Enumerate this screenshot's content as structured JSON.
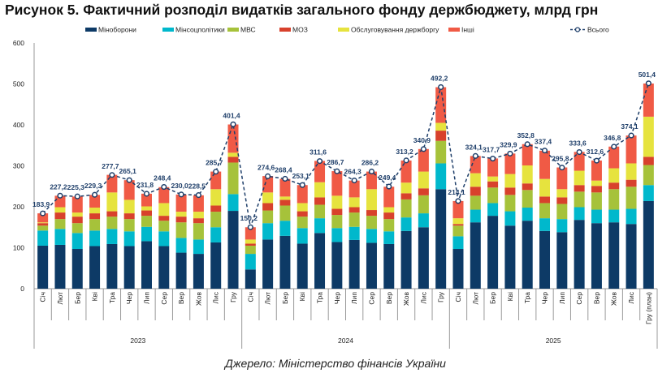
{
  "chart_data": {
    "type": "bar",
    "stacked": true,
    "title": "Рисунок 5. Фактичний розподіл видатків загального фонду держбюджету, млрд грн",
    "source": "Джерело: Міністерство фінансів України",
    "ylim": [
      0,
      600
    ],
    "yticks": [
      0,
      100,
      200,
      300,
      400,
      500,
      600
    ],
    "legend_position": "top",
    "groups": [
      "2023",
      "2024",
      "2025"
    ],
    "categories": [
      "Січ",
      "Лют",
      "Бер",
      "Кві",
      "Тра",
      "Чер",
      "Лип",
      "Сер",
      "Вер",
      "Жов",
      "Лис",
      "Гру",
      "Січ",
      "Лют",
      "Бер",
      "Кві",
      "Тра",
      "Чер",
      "Лип",
      "Сер",
      "Вер",
      "Жов",
      "Лис",
      "Гру",
      "Січ",
      "Лют",
      "Бер",
      "Кві",
      "Тра",
      "Чер",
      "Лип",
      "Сер",
      "Вер",
      "Жов",
      "Лис",
      "Гру (план)"
    ],
    "series": [
      {
        "name": "Міноборони",
        "color": "#0d3a66",
        "values": [
          105,
          107,
          97,
          104,
          109,
          104,
          116,
          104,
          88,
          85,
          113,
          190,
          47,
          120,
          129,
          110,
          136,
          114,
          119,
          112,
          109,
          141,
          150,
          243,
          97,
          162,
          178,
          154,
          166,
          141,
          138,
          168,
          160,
          162,
          158,
          214
        ]
      },
      {
        "name": "Мінсоцполітики",
        "color": "#00b8cc",
        "values": [
          37,
          39,
          39,
          38,
          37,
          36,
          35,
          36,
          36,
          35,
          37,
          41,
          38,
          40,
          37,
          38,
          36,
          34,
          32,
          34,
          31,
          33,
          34,
          63,
          31,
          31,
          31,
          35,
          32,
          31,
          32,
          31,
          33,
          31,
          37,
          39
        ]
      },
      {
        "name": "МВС",
        "color": "#a6c23a",
        "values": [
          12,
          24,
          24,
          28,
          30,
          30,
          27,
          26,
          38,
          40,
          38,
          77,
          20,
          31,
          37,
          28,
          33,
          32,
          35,
          32,
          30,
          44,
          44,
          55,
          26,
          34,
          38,
          40,
          43,
          37,
          37,
          38,
          42,
          50,
          54,
          49
        ]
      },
      {
        "name": "МОЗ",
        "color": "#d8412c",
        "values": [
          6,
          16,
          16,
          14,
          13,
          14,
          13,
          12,
          14,
          12,
          15,
          14,
          5,
          18,
          14,
          13,
          18,
          15,
          13,
          14,
          16,
          15,
          17,
          25,
          4,
          22,
          15,
          18,
          16,
          16,
          16,
          16,
          16,
          16,
          17,
          20
        ]
      },
      {
        "name": "Обслуговування держборгу",
        "color": "#e6e33e",
        "values": [
          2,
          13,
          10,
          14,
          46,
          33,
          10,
          31,
          12,
          16,
          40,
          10,
          10,
          26,
          8,
          20,
          37,
          32,
          24,
          51,
          13,
          26,
          41,
          19,
          14,
          33,
          12,
          33,
          44,
          43,
          20,
          35,
          13,
          35,
          40,
          98
        ]
      },
      {
        "name": "Інші",
        "color": "#f05a45",
        "values": [
          22,
          28,
          39,
          31,
          43,
          48,
          31,
          39,
          42,
          40,
          43,
          69,
          30,
          40,
          43,
          44,
          52,
          60,
          41,
          43,
          50,
          54,
          55,
          87,
          42,
          42,
          44,
          50,
          52,
          69,
          53,
          46,
          49,
          53,
          68,
          81
        ]
      }
    ],
    "total": {
      "name": "Всього",
      "color": "#1f3f6a",
      "values": [
        183.9,
        227.2,
        225.3,
        229.3,
        277.7,
        265.1,
        231.8,
        248.4,
        230.0,
        228.5,
        285.7,
        401.4,
        150.2,
        274.6,
        268.4,
        253.1,
        311.6,
        286.7,
        264.3,
        286.2,
        249.4,
        313.2,
        340.9,
        492.2,
        214.1,
        324.1,
        317.7,
        329.9,
        352.8,
        337.4,
        295.8,
        333.6,
        312.6,
        346.8,
        374.1,
        501.4
      ],
      "labels": [
        "183,9",
        "227,2",
        "225,3",
        "229,3",
        "277,7",
        "265,1",
        "231,8",
        "248,4",
        "230,0",
        "228,5",
        "285,7",
        "401,4",
        "150,2",
        "274,6",
        "268,4",
        "253,1",
        "311,6",
        "286,7",
        "264,3",
        "286,2",
        "249,4",
        "313,2",
        "340,9",
        "492,2",
        "214,1",
        "324,1",
        "317,7",
        "329,9",
        "352,8",
        "337,4",
        "295,8",
        "333,6",
        "312,6",
        "346,8",
        "374,1",
        "501,4"
      ]
    }
  }
}
